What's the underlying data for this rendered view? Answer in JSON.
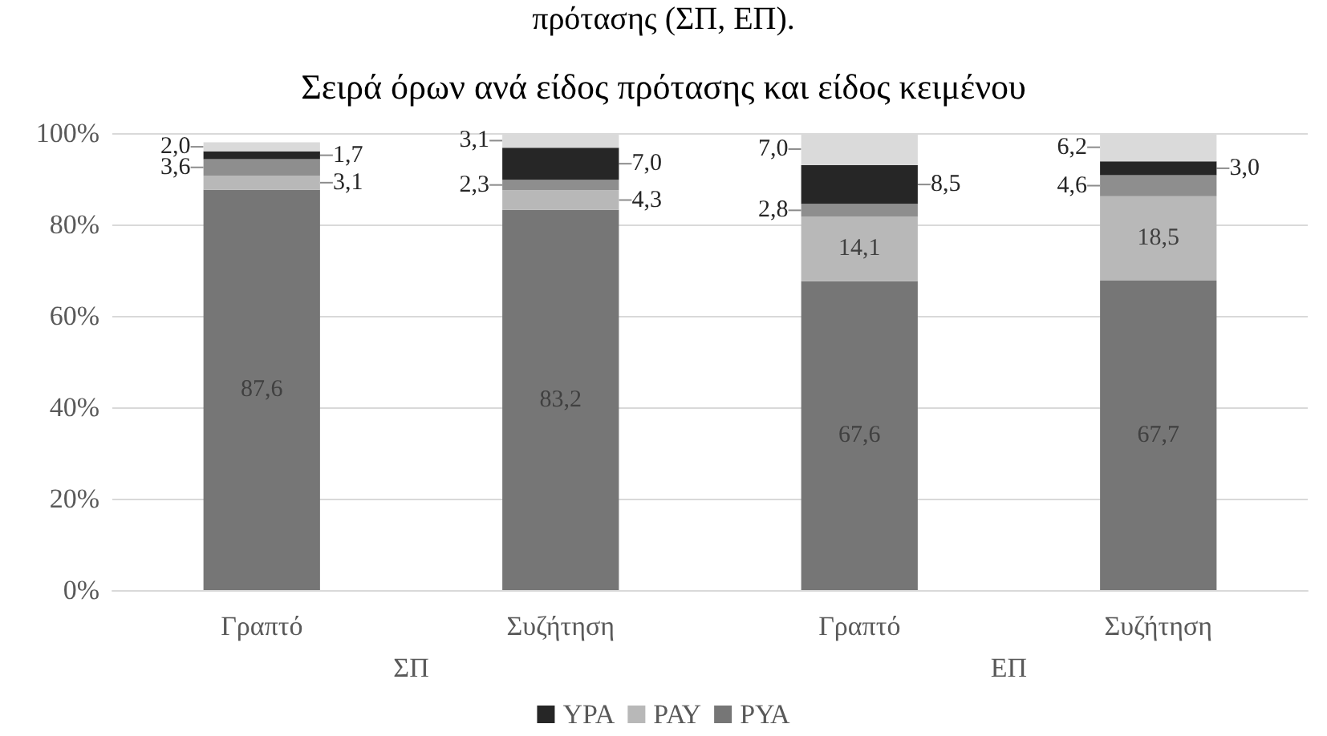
{
  "chart_data": {
    "type": "bar",
    "title": "Σειρά όρων ανά είδος πρότασης και είδος κειμένου",
    "annotations": [
      "πρότασης (ΣΠ, ΕΠ).",
      "ΣΠ",
      "ΕΠ"
    ],
    "categories": [
      "Γραπτό",
      "Συζήτηση",
      "Γραπτό",
      "Συζήτηση"
    ],
    "stacked": true,
    "series": [
      {
        "name": "ΡΥΑ",
        "color": "#767676",
        "values": [
          87.6,
          83.2,
          67.6,
          67.7
        ],
        "value_labels": [
          "87,6",
          "83,2",
          "67,6",
          "67,7"
        ]
      },
      {
        "name": "ΡΑΥ",
        "color": "#b8b8b8",
        "values": [
          3.1,
          4.3,
          14.1,
          18.5
        ],
        "value_labels": [
          "3,1",
          "4,3",
          "14,1",
          "18,5"
        ]
      },
      {
        "color": "#8e8e8e",
        "values": [
          3.6,
          2.3,
          2.8,
          4.6
        ],
        "value_labels": [
          "3,6",
          "2,3",
          "2,8",
          "4,6"
        ]
      },
      {
        "name": "ΥΡΑ",
        "color": "#262626",
        "values": [
          1.7,
          7.0,
          8.5,
          3.0
        ],
        "value_labels": [
          "1,7",
          "7,0",
          "8,5",
          "3,0"
        ]
      },
      {
        "color": "#dadada",
        "values": [
          2.0,
          3.1,
          7.0,
          6.2
        ],
        "value_labels": [
          "2,0",
          "3,1",
          "7,0",
          "6,2"
        ]
      }
    ],
    "ylim": [
      0,
      100
    ],
    "yticks": [
      {
        "value": 0,
        "label": "0%"
      },
      {
        "value": 20,
        "label": "20%"
      },
      {
        "value": 40,
        "label": "40%"
      },
      {
        "value": 60,
        "label": "60%"
      },
      {
        "value": 80,
        "label": "80%"
      },
      {
        "value": 100,
        "label": "100%"
      }
    ],
    "grid": "y",
    "legend": "bottom"
  }
}
